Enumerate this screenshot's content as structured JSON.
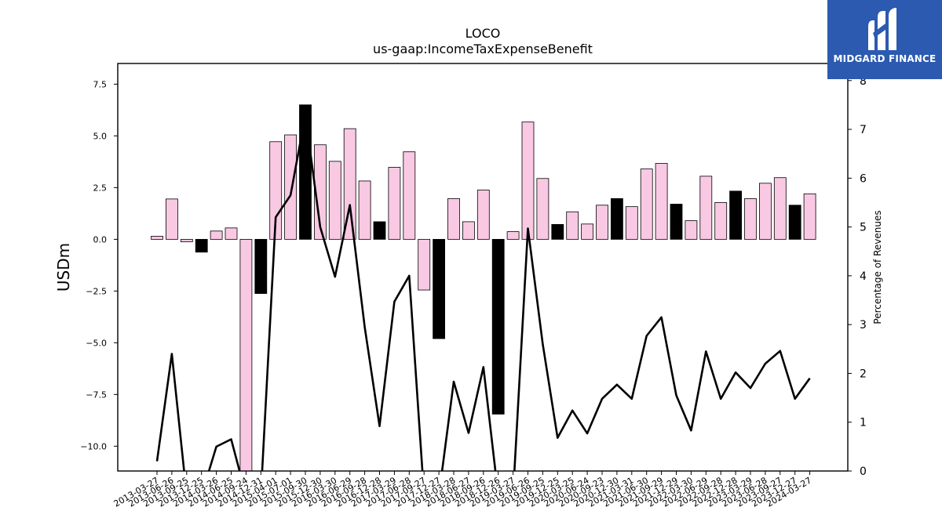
{
  "logo": {
    "text": "MIDGARD FINANCE",
    "icon": "midgard-m-logo-icon",
    "color": "#2b5ab0"
  },
  "chart_data": {
    "type": "bar",
    "title": "LOCO",
    "subtitle": "us-gaap:IncomeTaxExpenseBenefit",
    "ylabel": "USDm",
    "y2label": "Percentage of Revenues",
    "ylim": [
      -11.2,
      8.5
    ],
    "y2lim": [
      0,
      8.35
    ],
    "yticks": [
      -10.0,
      -7.5,
      -5.0,
      -2.5,
      0.0,
      2.5,
      5.0,
      7.5
    ],
    "y2ticks": [
      0,
      1,
      2,
      3,
      4,
      5,
      6,
      7,
      8
    ],
    "categories": [
      "2013-03-27",
      "2013-06-26",
      "2013-09-25",
      "2013-12-25",
      "2014-03-26",
      "2014-06-25",
      "2014-09-24",
      "2014-12-31",
      "2015-04-01",
      "2015-07-01",
      "2015-09-30",
      "2015-12-30",
      "2016-03-30",
      "2016-06-29",
      "2016-09-28",
      "2016-12-28",
      "2017-03-29",
      "2017-06-28",
      "2017-09-27",
      "2017-12-27",
      "2018-03-28",
      "2018-06-27",
      "2018-09-26",
      "2018-12-26",
      "2019-03-27",
      "2019-06-26",
      "2019-09-25",
      "2019-12-25",
      "2020-03-25",
      "2020-06-24",
      "2020-09-23",
      "2020-12-30",
      "2021-03-31",
      "2021-06-30",
      "2021-09-29",
      "2021-12-29",
      "2022-03-30",
      "2022-06-29",
      "2022-09-28",
      "2022-12-28",
      "2023-03-29",
      "2023-06-28",
      "2023-09-27",
      "2023-12-27",
      "2024-03-27"
    ],
    "series": [
      {
        "kind": "bar",
        "values": [
          0.15,
          1.95,
          -0.12,
          -0.62,
          0.4,
          0.55,
          -11.2,
          -2.62,
          4.72,
          5.05,
          6.5,
          4.57,
          3.77,
          5.35,
          2.82,
          0.85,
          3.48,
          4.23,
          -2.45,
          -4.8,
          1.97,
          0.85,
          2.38,
          -8.45,
          0.37,
          5.67,
          2.94,
          0.72,
          1.33,
          0.74,
          1.65,
          1.97,
          1.58,
          3.4,
          3.67,
          1.7,
          0.9,
          3.05,
          1.78,
          2.33,
          1.97,
          2.71,
          2.98,
          1.65,
          2.2
        ],
        "highlight": [
          false,
          false,
          false,
          true,
          false,
          false,
          false,
          true,
          false,
          false,
          true,
          false,
          false,
          false,
          false,
          true,
          false,
          false,
          false,
          true,
          false,
          false,
          false,
          true,
          false,
          false,
          false,
          true,
          false,
          false,
          false,
          true,
          false,
          false,
          false,
          true,
          false,
          false,
          false,
          true,
          false,
          false,
          false,
          true,
          false
        ],
        "color": "#f9c9e3",
        "highlight_color": "#000000"
      },
      {
        "kind": "line",
        "axis": "right",
        "values": [
          0.2,
          2.4,
          -0.5,
          -0.5,
          0.5,
          0.65,
          -0.5,
          -0.5,
          5.2,
          5.65,
          7.3,
          5.0,
          3.98,
          5.45,
          2.95,
          0.92,
          3.47,
          4.0,
          -0.5,
          -0.5,
          1.83,
          0.78,
          2.13,
          -0.5,
          -0.5,
          4.97,
          2.6,
          0.68,
          1.24,
          0.77,
          1.48,
          1.77,
          1.48,
          2.77,
          3.15,
          1.55,
          0.83,
          2.45,
          1.48,
          2.02,
          1.7,
          2.2,
          2.46,
          1.48,
          1.9
        ],
        "color": "#000000"
      }
    ]
  }
}
